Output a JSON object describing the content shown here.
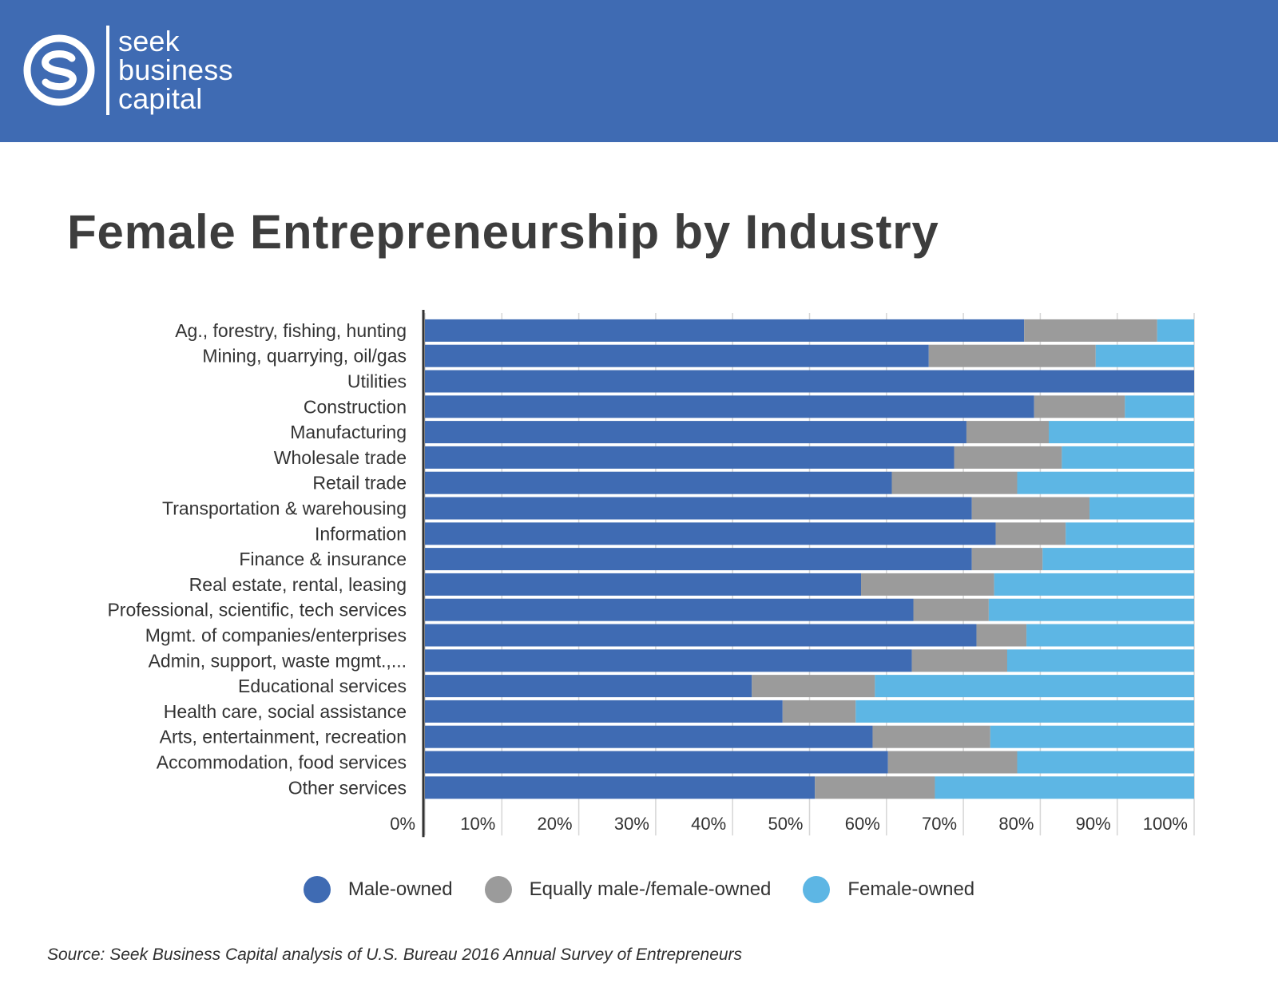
{
  "brand": {
    "logo_lines": [
      "seek",
      "business",
      "capital"
    ],
    "header_color": "#3f6bb3"
  },
  "title": "Female Entrepreneurship by Industry",
  "source": "Source: Seek Business Capital analysis of U.S. Bureau  2016 Annual Survey of Entrepreneurs",
  "chart_data": {
    "type": "bar",
    "orientation": "horizontal",
    "stacked": true,
    "categories": [
      "Ag., forestry, fishing, hunting",
      "Mining, quarrying, oil/gas",
      "Utilities",
      "Construction",
      "Manufacturing",
      "Wholesale trade",
      "Retail trade",
      "Transportation & warehousing",
      "Information",
      "Finance & insurance",
      "Real estate, rental, leasing",
      "Professional, scientific, tech services",
      "Mgmt. of companies/enterprises",
      "Admin, support, waste mgmt.,...",
      "Educational services",
      "Health care, social assistance",
      "Arts, entertainment, recreation",
      "Accommodation, food services",
      "Other services"
    ],
    "series": [
      {
        "name": "Male-owned",
        "color": "#3f6bb3",
        "values": [
          77.9,
          65.5,
          100,
          79.2,
          70.4,
          68.8,
          60.7,
          71.1,
          74.2,
          71.1,
          56.7,
          63.5,
          71.7,
          63.3,
          42.5,
          46.5,
          58.2,
          60.2,
          50.7
        ]
      },
      {
        "name": "Equally male-/female-owned",
        "color": "#9b9b9b",
        "values": [
          17.3,
          21.7,
          0,
          11.8,
          10.7,
          14.0,
          16.3,
          15.3,
          9.1,
          9.2,
          17.3,
          9.8,
          6.5,
          12.4,
          16.0,
          9.5,
          15.3,
          16.8,
          15.6
        ]
      },
      {
        "name": "Female-owned",
        "color": "#5db6e4",
        "values": [
          4.8,
          12.8,
          0,
          9.0,
          18.9,
          17.2,
          23.0,
          13.6,
          16.7,
          19.7,
          26.0,
          26.7,
          21.8,
          24.3,
          41.5,
          44.0,
          26.5,
          23.0,
          33.7
        ]
      }
    ],
    "x_ticks": [
      "0%",
      "10%",
      "20%",
      "30%",
      "40%",
      "50%",
      "60%",
      "70%",
      "80%",
      "90%",
      "100%"
    ],
    "xlim": [
      0,
      100
    ],
    "xlabel": "",
    "ylabel": "",
    "grid": true,
    "legend_position": "bottom"
  }
}
